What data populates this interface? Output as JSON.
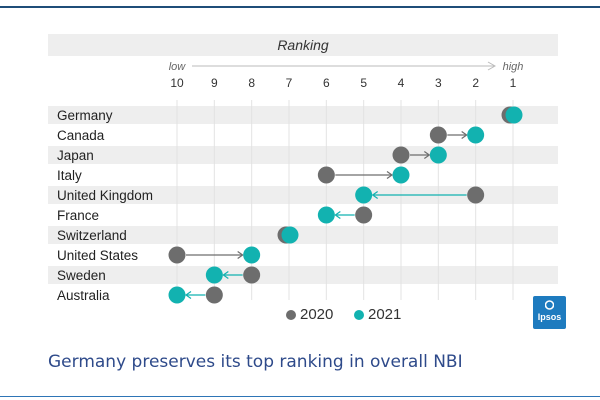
{
  "chart_data": {
    "type": "dumbbell",
    "title": "Ranking",
    "axis": {
      "low_label": "low",
      "high_label": "high",
      "ticks": [
        10,
        9,
        8,
        7,
        6,
        5,
        4,
        3,
        2,
        1
      ],
      "range": [
        10,
        1
      ]
    },
    "series": [
      {
        "name": "2020",
        "color": "#6d6d6d"
      },
      {
        "name": "2021",
        "color": "#12b2b0"
      }
    ],
    "rows": [
      {
        "country": "Germany",
        "y2020": 1,
        "y2021": 1
      },
      {
        "country": "Canada",
        "y2020": 3,
        "y2021": 2
      },
      {
        "country": "Japan",
        "y2020": 4,
        "y2021": 3
      },
      {
        "country": "Italy",
        "y2020": 6,
        "y2021": 4
      },
      {
        "country": "United Kingdom",
        "y2020": 2,
        "y2021": 5
      },
      {
        "country": "France",
        "y2020": 5,
        "y2021": 6
      },
      {
        "country": "Switzerland",
        "y2020": 7,
        "y2021": 7
      },
      {
        "country": "United States",
        "y2020": 10,
        "y2021": 8
      },
      {
        "country": "Sweden",
        "y2020": 8,
        "y2021": 9
      },
      {
        "country": "Australia",
        "y2020": 9,
        "y2021": 10
      }
    ]
  },
  "legend": {
    "label_2020": "2020",
    "label_2021": "2021"
  },
  "caption": "Germany preserves its top ranking in overall NBI",
  "logo_text": "Ipsos",
  "colors": {
    "band": "#eeeeee",
    "accent": "#12b2b0",
    "grey": "#6d6d6d",
    "caption": "#2e4a8a"
  }
}
